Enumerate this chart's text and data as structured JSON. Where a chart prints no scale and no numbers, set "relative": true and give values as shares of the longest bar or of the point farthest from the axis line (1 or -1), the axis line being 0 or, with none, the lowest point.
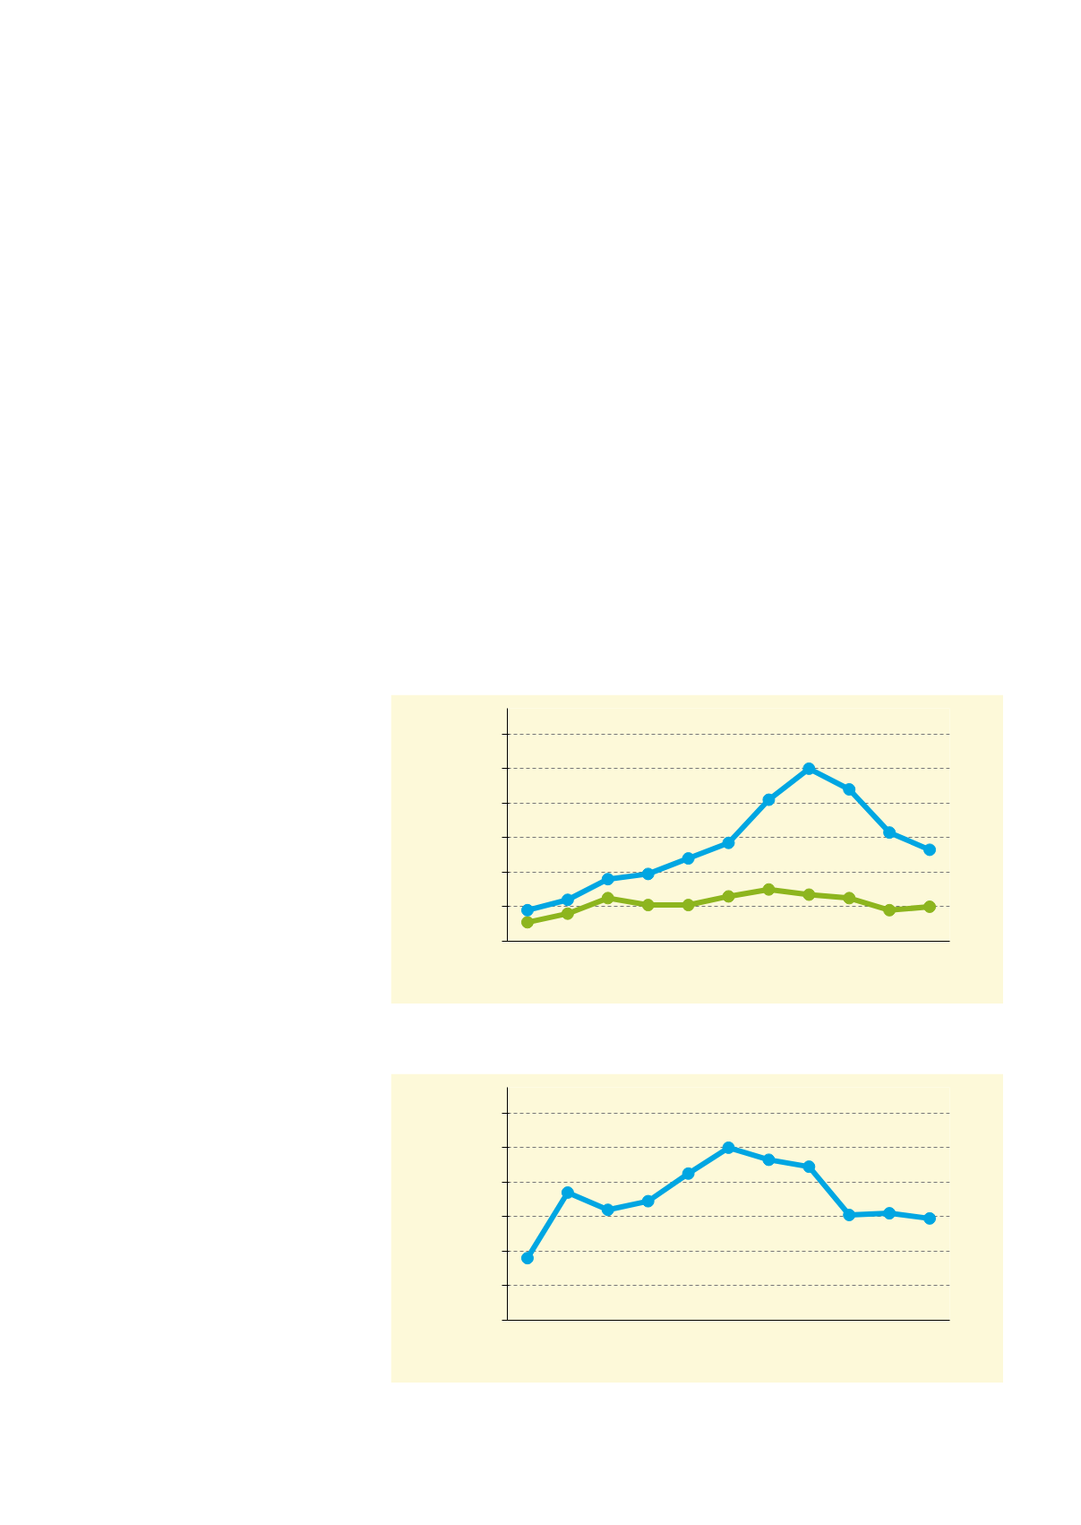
{
  "chart_data": [
    {
      "type": "line",
      "relative": true,
      "categories": [
        null,
        null,
        null,
        null,
        null,
        null,
        null,
        null,
        null,
        null,
        null
      ],
      "grid": "y",
      "marker": "circle",
      "line_style": "solid",
      "series": [
        {
          "color": "#8db51e",
          "values": [
            0.11,
            0.16,
            0.25,
            0.21,
            0.21,
            0.26,
            0.3,
            0.27,
            0.25,
            0.18,
            0.2
          ]
        },
        {
          "color": "#00a6e2",
          "values": [
            0.18,
            0.24,
            0.36,
            0.39,
            0.48,
            0.57,
            0.82,
            1,
            0.88,
            0.63,
            0.53
          ]
        }
      ]
    },
    {
      "type": "line",
      "relative": true,
      "categories": [
        null,
        null,
        null,
        null,
        null,
        null,
        null,
        null,
        null,
        null,
        null
      ],
      "grid": "y",
      "marker": "circle",
      "line_style": "solid",
      "series": [
        {
          "color": "#00a6e2",
          "values": [
            0.36,
            0.74,
            0.64,
            0.69,
            0.85,
            1,
            0.93,
            0.89,
            0.61,
            0.62,
            0.59
          ]
        }
      ]
    }
  ]
}
